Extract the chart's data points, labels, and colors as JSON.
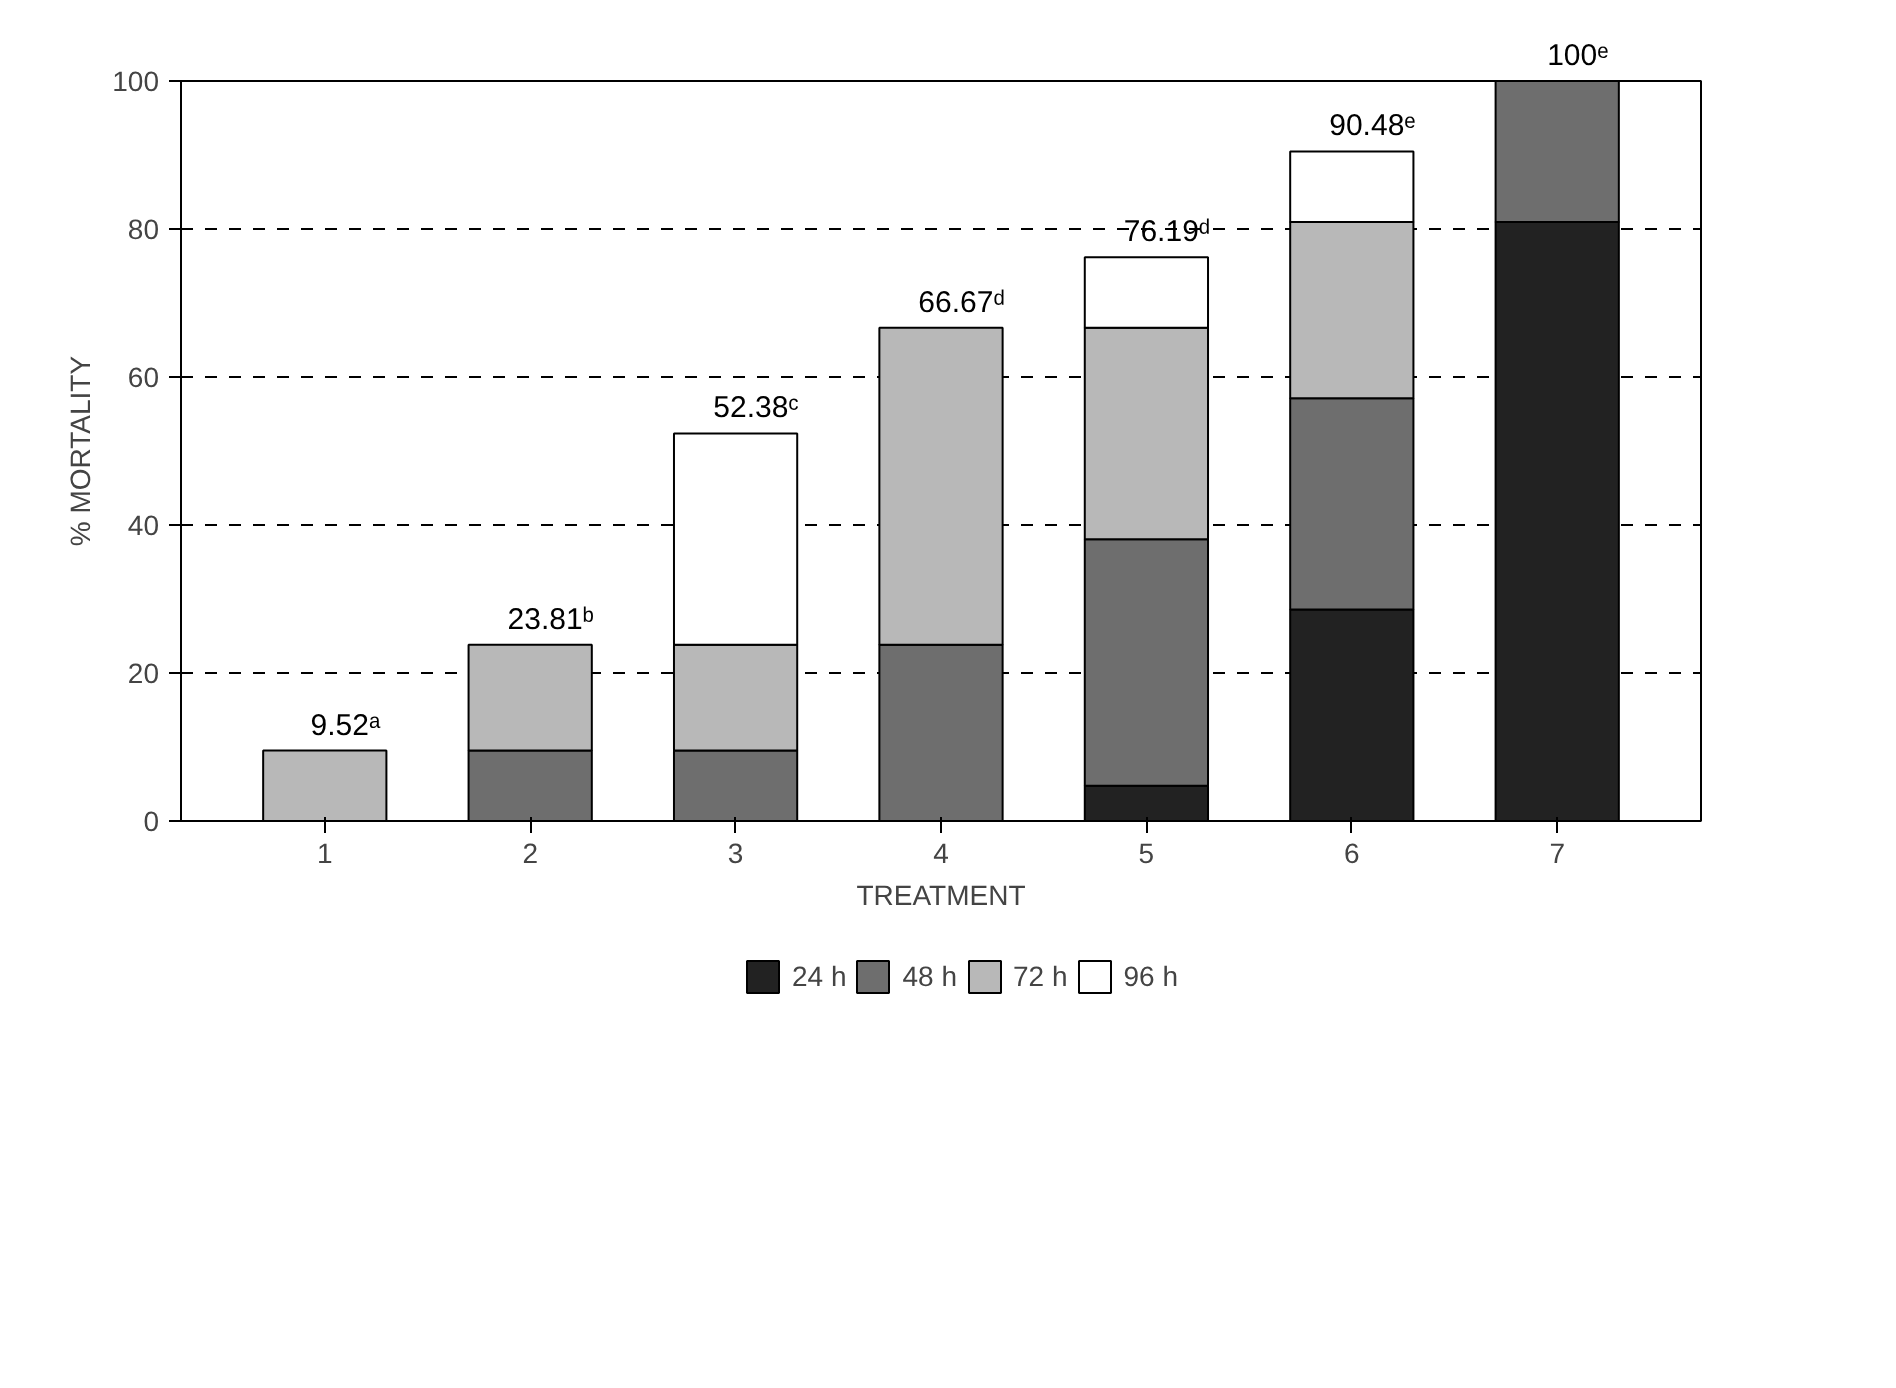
{
  "chart_data": {
    "type": "bar",
    "stacked": true,
    "xlabel": "TREATMENT",
    "ylabel": "% MORTALITY",
    "categories": [
      "1",
      "2",
      "3",
      "4",
      "5",
      "6",
      "7"
    ],
    "series": [
      {
        "name": "24 h",
        "color": "#222222",
        "values": [
          null,
          null,
          null,
          null,
          4.76,
          28.57,
          80.95
        ]
      },
      {
        "name": "48 h",
        "color": "#6e6e6e",
        "values": [
          null,
          9.52,
          9.52,
          23.81,
          33.33,
          28.57,
          19.05
        ]
      },
      {
        "name": "72 h",
        "color": "#b8b8b8",
        "values": [
          9.52,
          14.29,
          14.29,
          42.86,
          28.58,
          23.81,
          null
        ]
      },
      {
        "name": "96 h",
        "color": "#ffffff",
        "values": [
          null,
          null,
          28.57,
          null,
          9.52,
          9.53,
          null
        ]
      }
    ],
    "totals": [
      "9.52ᵃ",
      "23.81ᵇ",
      "52.38ᶜ",
      "66.67ᵈ",
      "76.19ᵈ",
      "90.48ᵉ",
      "100ᵉ"
    ],
    "ylim": [
      0,
      100
    ],
    "yticks": [
      0,
      20,
      40,
      60,
      80,
      100
    ],
    "grid": "y",
    "line_style": "dashed",
    "legend": "bottom"
  }
}
